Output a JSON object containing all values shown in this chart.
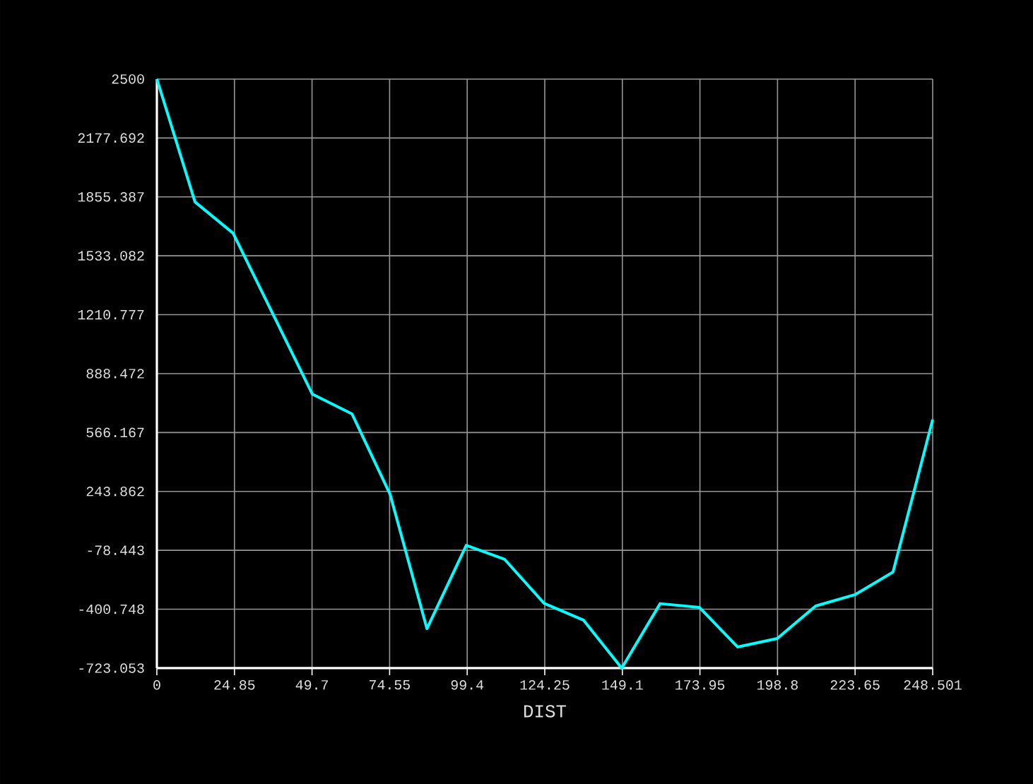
{
  "chart_data": {
    "type": "line",
    "xlabel": "DIST",
    "x": [
      0,
      12.2,
      24.4,
      49.8,
      62.5,
      74.7,
      86.5,
      99.1,
      111.4,
      124,
      136.7,
      148.9,
      161.2,
      173.8,
      186,
      198.7,
      211,
      223.6,
      235.8,
      248.5
    ],
    "series": [
      {
        "color": "#00ffff",
        "values": [
          2500,
          1828,
          1657,
          776,
          668,
          228,
          -507,
          -51,
          -128,
          -368,
          -461,
          -723,
          -370,
          -391,
          -607,
          -561,
          -383,
          -321,
          -197,
          637
        ]
      }
    ],
    "xlim": [
      0,
      248.501
    ],
    "ylim": [
      -723.053,
      2500
    ],
    "xticks": [
      0,
      24.85,
      49.7,
      74.55,
      99.4,
      124.25,
      149.1,
      173.95,
      198.8,
      223.65,
      248.501
    ],
    "yticks": [
      -723.053,
      -400.748,
      -78.443,
      243.862,
      566.167,
      888.472,
      1210.777,
      1533.082,
      1855.387,
      2177.692,
      2500
    ],
    "grid": true,
    "line_style": "solid"
  }
}
